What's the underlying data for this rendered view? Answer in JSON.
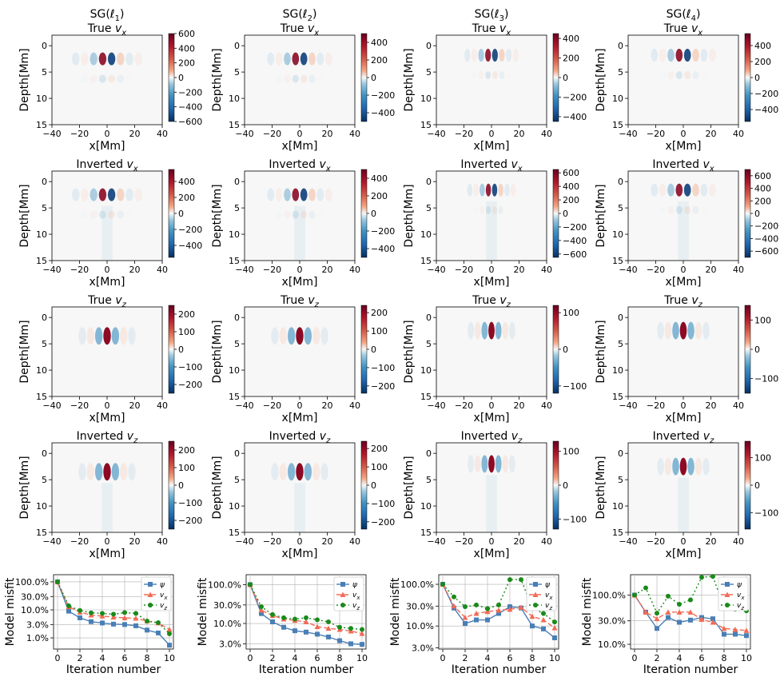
{
  "columns": [
    {
      "title": "SG(ℓ1)"
    },
    {
      "title": "SG(ℓ2)"
    },
    {
      "title": "SG(ℓ3)"
    },
    {
      "title": "SG(ℓ4)"
    }
  ],
  "row_titles": [
    "True v_x",
    "Inverted v_x",
    "True v_z",
    "Inverted v_z"
  ],
  "axes": {
    "depth_label": "Depth[Mm]",
    "x_label": "x[Mm]",
    "x_ticks": [
      "−40",
      "−20",
      "0",
      "20",
      "40"
    ],
    "depth_ticks": [
      "0",
      "5",
      "10",
      "15"
    ],
    "misfit_ylabel": "Model misfit",
    "misfit_xlabel": "Iteration number",
    "iteration_ticks": [
      "0",
      "2",
      "4",
      "6",
      "8",
      "10"
    ]
  },
  "colormap": {
    "negative": "#053061",
    "mid_neg": "#4393c3",
    "zero": "#f7f7f7",
    "mid_pos": "#f4a582",
    "positive": "#67001f"
  },
  "chart_data": {
    "type": "figure",
    "heatmaps": [
      {
        "row": 0,
        "col": 0,
        "title": "True v_x",
        "field": "vx",
        "vmax": 600,
        "ticks": [
          600,
          400,
          200,
          0,
          -200,
          -400,
          -600
        ],
        "depth_center": 2.5,
        "width": 6.5,
        "inverted": false
      },
      {
        "row": 0,
        "col": 1,
        "title": "True v_x",
        "field": "vx",
        "vmax": 500,
        "ticks": [
          400,
          200,
          0,
          -200,
          -400
        ],
        "depth_center": 2.5,
        "width": 6.0,
        "inverted": false
      },
      {
        "row": 0,
        "col": 2,
        "title": "True v_x",
        "field": "vx",
        "vmax": 450,
        "ticks": [
          400,
          200,
          0,
          -200,
          -400
        ],
        "depth_center": 1.8,
        "width": 5.0,
        "inverted": false
      },
      {
        "row": 0,
        "col": 3,
        "title": "True v_x",
        "field": "vx",
        "vmax": 550,
        "ticks": [
          400,
          200,
          0,
          -200,
          -400
        ],
        "depth_center": 1.8,
        "width": 6.0,
        "inverted": false
      },
      {
        "row": 1,
        "col": 0,
        "title": "Inverted v_x",
        "field": "vx",
        "vmax": 550,
        "ticks": [
          400,
          200,
          0,
          -200,
          -400
        ],
        "depth_center": 2.5,
        "width": 6.5,
        "inverted": true
      },
      {
        "row": 1,
        "col": 1,
        "title": "Inverted v_x",
        "field": "vx",
        "vmax": 500,
        "ticks": [
          400,
          200,
          0,
          -200,
          -400
        ],
        "depth_center": 2.5,
        "width": 6.0,
        "inverted": true
      },
      {
        "row": 1,
        "col": 2,
        "title": "Inverted v_x",
        "field": "vx",
        "vmax": 650,
        "ticks": [
          600,
          400,
          200,
          0,
          -200,
          -400,
          -600
        ],
        "depth_center": 1.6,
        "width": 4.5,
        "inverted": true
      },
      {
        "row": 1,
        "col": 3,
        "title": "Inverted v_x",
        "field": "vx",
        "vmax": 700,
        "ticks": [
          600,
          400,
          200,
          0,
          -200,
          -400,
          -600
        ],
        "depth_center": 1.6,
        "width": 6.0,
        "inverted": true
      },
      {
        "row": 2,
        "col": 0,
        "title": "True v_z",
        "field": "vz",
        "vmax": 250,
        "ticks": [
          200,
          100,
          0,
          -100,
          -200
        ],
        "depth_center": 3.5,
        "width": 6.0,
        "inverted": false
      },
      {
        "row": 2,
        "col": 1,
        "title": "True v_z",
        "field": "vz",
        "vmax": 240,
        "ticks": [
          200,
          100,
          0,
          -100,
          -200
        ],
        "depth_center": 3.5,
        "width": 6.0,
        "inverted": false
      },
      {
        "row": 2,
        "col": 2,
        "title": "True v_z",
        "field": "vz",
        "vmax": 120,
        "ticks": [
          100,
          0,
          -100
        ],
        "depth_center": 2.5,
        "width": 5.0,
        "inverted": false
      },
      {
        "row": 2,
        "col": 3,
        "title": "True v_z",
        "field": "vz",
        "vmax": 150,
        "ticks": [
          100,
          0,
          -100
        ],
        "depth_center": 2.5,
        "width": 5.5,
        "inverted": false
      },
      {
        "row": 3,
        "col": 0,
        "title": "Inverted v_z",
        "field": "vz",
        "vmax": 250,
        "ticks": [
          200,
          100,
          0,
          -100,
          -200
        ],
        "depth_center": 3.5,
        "width": 6.0,
        "inverted": true
      },
      {
        "row": 3,
        "col": 1,
        "title": "Inverted v_z",
        "field": "vz",
        "vmax": 240,
        "ticks": [
          200,
          100,
          0,
          -100,
          -200
        ],
        "depth_center": 3.5,
        "width": 6.0,
        "inverted": true
      },
      {
        "row": 3,
        "col": 2,
        "title": "Inverted v_z",
        "field": "vz",
        "vmax": 130,
        "ticks": [
          100,
          0,
          -100
        ],
        "depth_center": 2.0,
        "width": 5.0,
        "inverted": true
      },
      {
        "row": 3,
        "col": 3,
        "title": "Inverted v_z",
        "field": "vz",
        "vmax": 160,
        "ticks": [
          100,
          0,
          -100
        ],
        "depth_center": 2.5,
        "width": 5.5,
        "inverted": true
      }
    ],
    "heatmap_axes": {
      "xlim": [
        -40,
        40
      ],
      "ylim": [
        15,
        -2
      ],
      "x_ticks": [
        -40,
        -20,
        0,
        20,
        40
      ],
      "y_ticks": [
        0,
        5,
        10,
        15
      ]
    },
    "misfit": [
      {
        "col": 0,
        "type": "line",
        "yscale": "log",
        "ylim": [
          0.4,
          180
        ],
        "y_ticks": [
          100,
          30,
          10,
          3,
          1
        ],
        "y_tick_labels": [
          "100.0%",
          "10.0%",
          "1.0%"
        ],
        "y_tick_labels_all": [
          "100.0%",
          "30.0%",
          "10.0%",
          "3.0%",
          "1.0%"
        ],
        "x": [
          0,
          1,
          2,
          3,
          4,
          5,
          6,
          7,
          8,
          9,
          10
        ],
        "series": [
          {
            "name": "ψ",
            "color": "#4a7fb5",
            "marker": "square",
            "dash": "",
            "values": [
              100,
              9,
              5.2,
              3.8,
              3.4,
              3.1,
              3.0,
              2.7,
              1.9,
              1.5,
              0.55
            ]
          },
          {
            "name": "v_x",
            "color": "#f26b55",
            "marker": "triangle",
            "dash": "6,3",
            "values": [
              100,
              13,
              8.3,
              6.5,
              6.0,
              5.5,
              5.2,
              5.0,
              4.0,
              3.4,
              2.0
            ]
          },
          {
            "name": "v_z",
            "color": "#1a8a1a",
            "marker": "circle",
            "dash": "2,3",
            "values": [
              100,
              14,
              9.5,
              7.8,
              7.5,
              7.0,
              8.0,
              7.5,
              4.0,
              3.5,
              1.4
            ]
          }
        ]
      },
      {
        "col": 1,
        "type": "line",
        "yscale": "log",
        "ylim": [
          2.2,
          180
        ],
        "y_ticks": [
          100,
          30,
          10,
          3
        ],
        "y_tick_labels_all": [
          "100.0%",
          "30.0%",
          "10.0%",
          "3.0%"
        ],
        "x": [
          0,
          1,
          2,
          3,
          4,
          5,
          6,
          7,
          8,
          9,
          10
        ],
        "series": [
          {
            "name": "ψ",
            "color": "#4a7fb5",
            "marker": "square",
            "dash": "",
            "values": [
              100,
              18,
              11,
              8.0,
              6.5,
              6.0,
              5.3,
              4.5,
              3.6,
              3.0,
              2.9
            ]
          },
          {
            "name": "v_x",
            "color": "#f26b55",
            "marker": "triangle",
            "dash": "6,3",
            "values": [
              100,
              22,
              16,
              13,
              12,
              11,
              8.3,
              7.5,
              7.0,
              6.4,
              5.5
            ]
          },
          {
            "name": "v_z",
            "color": "#1a8a1a",
            "marker": "circle",
            "dash": "2,3",
            "values": [
              100,
              27,
              17,
              14,
              13,
              14,
              12.5,
              11,
              8.0,
              7.5,
              7.0
            ]
          }
        ]
      },
      {
        "col": 2,
        "type": "line",
        "yscale": "log",
        "ylim": [
          2.8,
          170
        ],
        "y_ticks": [
          100,
          30,
          10,
          3
        ],
        "y_tick_labels_all": [
          "100.0%",
          "30.0%",
          "10.0%",
          "3.0%"
        ],
        "x": [
          0,
          1,
          2,
          3,
          4,
          5,
          6,
          7,
          8,
          9,
          10
        ],
        "series": [
          {
            "name": "ψ",
            "color": "#4a7fb5",
            "marker": "square",
            "dash": "",
            "values": [
              100,
              27,
              11.5,
              14,
              14,
              20,
              29,
              27,
              10,
              8.5,
              5.2
            ]
          },
          {
            "name": "v_x",
            "color": "#f26b55",
            "marker": "triangle",
            "dash": "6,3",
            "values": [
              100,
              30,
              16,
              20,
              22,
              24,
              25,
              28,
              17,
              14,
              9.0
            ]
          },
          {
            "name": "v_z",
            "color": "#1a8a1a",
            "marker": "circle",
            "dash": "2,3",
            "values": [
              100,
              50,
              29,
              32,
              26,
              32,
              130,
              130,
              27,
              20,
              12.5
            ]
          }
        ]
      },
      {
        "col": 3,
        "type": "line",
        "yscale": "log",
        "ylim": [
          8,
          260
        ],
        "y_ticks": [
          100,
          30,
          10
        ],
        "y_tick_labels_all": [
          "100.0%",
          "30.0%",
          "10.0%"
        ],
        "x": [
          0,
          1,
          2,
          3,
          4,
          5,
          6,
          7,
          8,
          9,
          10
        ],
        "series": [
          {
            "name": "ψ",
            "color": "#4a7fb5",
            "marker": "square",
            "dash": "",
            "values": [
              100,
              45,
              21,
              35,
              28,
              31,
              35,
              33,
              16,
              16,
              15
            ]
          },
          {
            "name": "v_x",
            "color": "#f26b55",
            "marker": "triangle",
            "dash": "6,3",
            "values": [
              100,
              45,
              33,
              45,
              45,
              45,
              32,
              28,
              21,
              20,
              19
            ]
          },
          {
            "name": "v_z",
            "color": "#1a8a1a",
            "marker": "circle",
            "dash": "2,3",
            "values": [
              100,
              140,
              43,
              95,
              65,
              80,
              230,
              240,
              55,
              52,
              48
            ]
          }
        ]
      }
    ]
  }
}
